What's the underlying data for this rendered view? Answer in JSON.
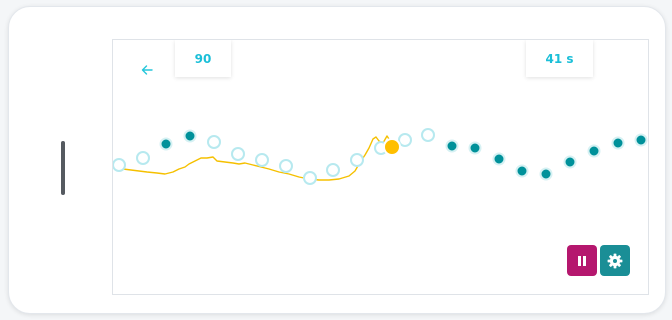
{
  "header": {
    "back_icon": "arrow-left-icon",
    "score": "90",
    "timer": "41 s"
  },
  "controls": {
    "pause_icon": "pause-icon",
    "settings_icon": "gear-icon"
  },
  "colors": {
    "accent": "#26c6da",
    "score_text": "#1bbfd8",
    "pathway": "#b7e9ef",
    "collected": "#00919a",
    "trace": "#f5c000",
    "cursor": "#ffbf00",
    "pause_button": "#b5176e",
    "settings_button": "#1a8e96",
    "home_bar": "#555a60"
  },
  "game": {
    "markers_total": 23,
    "markers_collected": 12
  }
}
